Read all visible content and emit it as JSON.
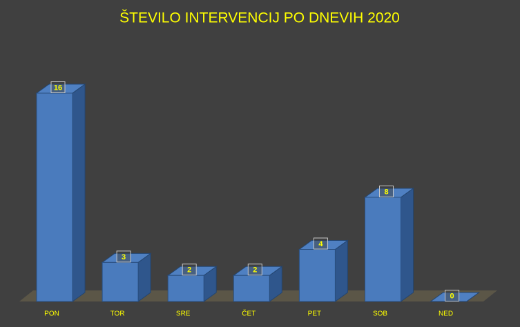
{
  "chart_data": {
    "type": "bar",
    "title": "ŠTEVILO INTERVENCIJ PO DNEVIH 2020",
    "categories": [
      "PON",
      "TOR",
      "SRE",
      "ČET",
      "PET",
      "SOB",
      "NED"
    ],
    "values": [
      16,
      3,
      2,
      2,
      4,
      8,
      0
    ],
    "color": "#4a7bbd"
  }
}
